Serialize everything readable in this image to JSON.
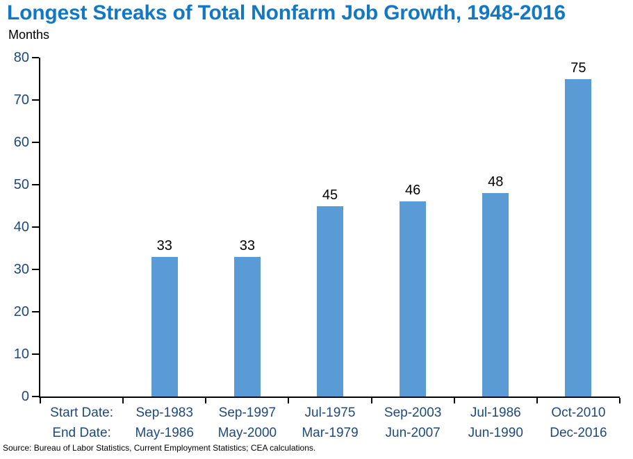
{
  "page": {
    "title": "Longest Streaks of Total Nonfarm Job Growth, 1948-2016",
    "units_label": "Months",
    "source": "Source: Bureau of Labor Statistics, Current Employment Statistics; CEA calculations."
  },
  "colors": {
    "title": "#1277C5",
    "bar": "#5B9BD5",
    "axis_text": "#1F497D",
    "axis_line": "#000000",
    "value_label": "#000000"
  },
  "chart_data": {
    "type": "bar",
    "title": "Longest Streaks of Total Nonfarm Job Growth, 1948-2016",
    "xlabel": "",
    "ylabel": "Months",
    "ylim": [
      0,
      80
    ],
    "ytick_interval": 10,
    "grid": false,
    "legend": false,
    "value_labels_shown": true,
    "x_row_headers": {
      "start": "Start Date:",
      "end": "End Date:"
    },
    "categories": [
      {
        "start_date": "Sep-1983",
        "end_date": "May-1986",
        "value": 33
      },
      {
        "start_date": "Sep-1997",
        "end_date": "May-2000",
        "value": 33
      },
      {
        "start_date": "Jul-1975",
        "end_date": "Mar-1979",
        "value": 45
      },
      {
        "start_date": "Sep-2003",
        "end_date": "Jun-2007",
        "value": 46
      },
      {
        "start_date": "Jul-1986",
        "end_date": "Jun-1990",
        "value": 48
      },
      {
        "start_date": "Oct-2010",
        "end_date": "Dec-2016",
        "value": 75
      }
    ]
  }
}
